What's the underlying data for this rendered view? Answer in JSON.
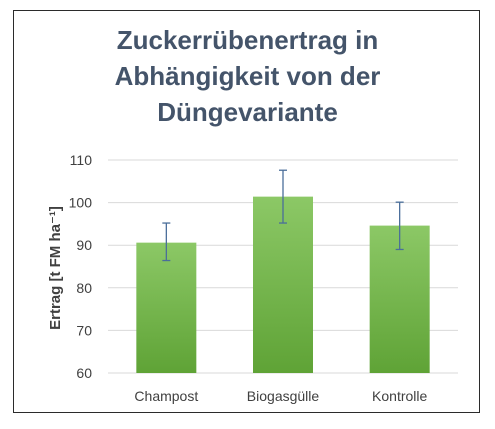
{
  "chart_data": {
    "type": "bar",
    "title_lines": [
      "Zuckerrübenertrag in",
      "Abhängigkeit von der",
      "Düngevariante"
    ],
    "ylabel": "Ertrag [t FM ha⁻¹]",
    "xlabel": "",
    "categories": [
      "Champost",
      "Biogasgülle",
      "Kontrolle"
    ],
    "values": [
      90.6,
      101.4,
      94.6
    ],
    "error_low": [
      86.4,
      95.2,
      89.0
    ],
    "error_high": [
      95.2,
      107.6,
      100.1
    ],
    "ylim": [
      60,
      110
    ],
    "yticks": [
      60,
      70,
      80,
      90,
      100,
      110
    ],
    "grid": true,
    "bar_color_top": "#8cc866",
    "bar_color_bottom": "#5fa336",
    "error_color": "#4a6e9a"
  }
}
